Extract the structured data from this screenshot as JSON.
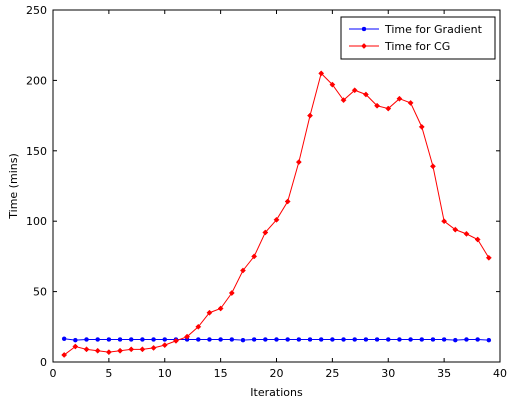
{
  "chart_data": {
    "type": "line",
    "title": "",
    "xlabel": "Iterations",
    "ylabel": "Time (mins)",
    "xlim": [
      0,
      40
    ],
    "ylim": [
      0,
      250
    ],
    "xticks": [
      0,
      5,
      10,
      15,
      20,
      25,
      30,
      35,
      40
    ],
    "yticks": [
      0,
      50,
      100,
      150,
      200,
      250
    ],
    "grid": false,
    "legend_position": "top-right",
    "series": [
      {
        "name": "Time for Gradient",
        "color": "#0000ff",
        "marker": "dot",
        "x": [
          1,
          2,
          3,
          4,
          5,
          6,
          7,
          8,
          9,
          10,
          11,
          12,
          13,
          14,
          15,
          16,
          17,
          18,
          19,
          20,
          21,
          22,
          23,
          24,
          25,
          26,
          27,
          28,
          29,
          30,
          31,
          32,
          33,
          34,
          35,
          36,
          37,
          38,
          39
        ],
        "y": [
          16.5,
          15.5,
          16,
          16,
          16,
          16,
          16,
          16,
          16,
          16,
          16,
          16,
          16,
          16,
          16,
          16,
          15.5,
          16,
          16,
          16,
          16,
          16,
          16,
          16,
          16,
          16,
          16,
          16,
          16,
          16,
          16,
          16,
          16,
          16,
          16,
          15.5,
          16,
          16,
          15.5
        ]
      },
      {
        "name": "Time for CG",
        "color": "#ff0000",
        "marker": "diamond",
        "x": [
          1,
          2,
          3,
          4,
          5,
          6,
          7,
          8,
          9,
          10,
          11,
          12,
          13,
          14,
          15,
          16,
          17,
          18,
          19,
          20,
          21,
          22,
          23,
          24,
          25,
          26,
          27,
          28,
          29,
          30,
          31,
          32,
          33,
          34,
          35,
          36,
          37,
          38,
          39
        ],
        "y": [
          5,
          11,
          9,
          8,
          7,
          8,
          9,
          9,
          10,
          12,
          15,
          18,
          25,
          35,
          38,
          49,
          65,
          75,
          92,
          101,
          114,
          142,
          175,
          205,
          197,
          186,
          193,
          190,
          182,
          180,
          187,
          184,
          167,
          139,
          100,
          94,
          91,
          87,
          74
        ]
      }
    ]
  }
}
